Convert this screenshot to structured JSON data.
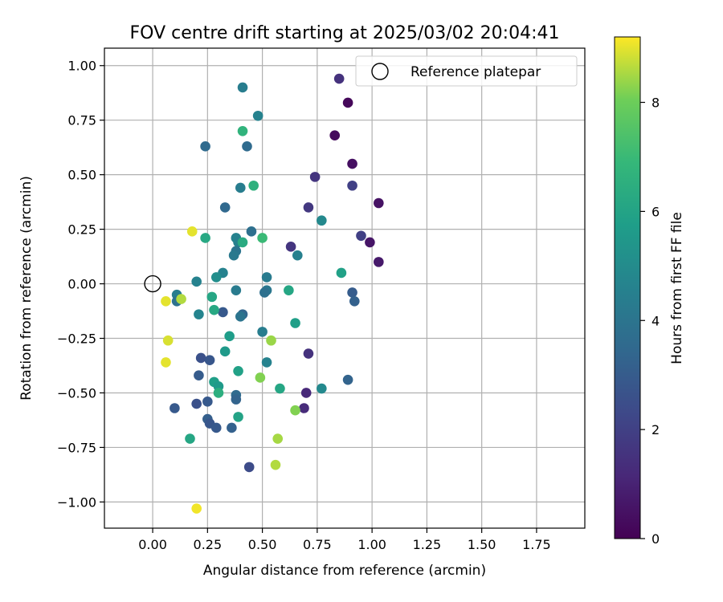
{
  "chart_data": {
    "type": "scatter",
    "title": "FOV centre drift starting at 2025/03/02 20:04:41",
    "xlabel": "Angular distance from reference (arcmin)",
    "ylabel": "Rotation from reference (arcmin)",
    "xlim": [
      -0.22,
      1.97
    ],
    "ylim": [
      -1.12,
      1.08
    ],
    "x_ticks": [
      0.0,
      0.25,
      0.5,
      0.75,
      1.0,
      1.25,
      1.5,
      1.75
    ],
    "x_tick_labels": [
      "0.00",
      "0.25",
      "0.50",
      "0.75",
      "1.00",
      "1.25",
      "1.50",
      "1.75"
    ],
    "y_ticks": [
      1.0,
      0.75,
      0.5,
      0.25,
      0.0,
      -0.25,
      -0.5,
      -0.75,
      -1.0
    ],
    "y_tick_labels": [
      "1.00",
      "0.75",
      "0.50",
      "0.25",
      "0.00",
      "−0.25",
      "−0.50",
      "−0.75",
      "−1.00"
    ],
    "grid": true,
    "legend": {
      "placement": "top-right",
      "entries": [
        "Reference platepar"
      ]
    },
    "reference_point": {
      "x": 0.0,
      "y": 0.0,
      "label": "Reference platepar"
    },
    "colorbar": {
      "label": "Hours from first FF file",
      "colormap": "viridis",
      "range": [
        0,
        9.2
      ],
      "ticks": [
        0,
        2,
        4,
        6,
        8
      ],
      "tick_labels": [
        "0",
        "2",
        "4",
        "6",
        "8"
      ]
    },
    "points": [
      {
        "x": 0.89,
        "y": 0.83,
        "c": 0.2
      },
      {
        "x": 0.83,
        "y": 0.68,
        "c": 0.3
      },
      {
        "x": 0.91,
        "y": 0.55,
        "c": 0.4
      },
      {
        "x": 1.03,
        "y": 0.37,
        "c": 0.5
      },
      {
        "x": 0.99,
        "y": 0.19,
        "c": 0.6
      },
      {
        "x": 1.03,
        "y": 0.1,
        "c": 0.7
      },
      {
        "x": 0.85,
        "y": 0.94,
        "c": 1.5
      },
      {
        "x": 0.74,
        "y": 0.49,
        "c": 1.6
      },
      {
        "x": 0.91,
        "y": 0.45,
        "c": 2.0
      },
      {
        "x": 0.71,
        "y": 0.35,
        "c": 1.7
      },
      {
        "x": 0.95,
        "y": 0.22,
        "c": 2.0
      },
      {
        "x": 0.63,
        "y": 0.17,
        "c": 1.6
      },
      {
        "x": 0.71,
        "y": -0.32,
        "c": 1.5
      },
      {
        "x": 0.7,
        "y": -0.5,
        "c": 1.2
      },
      {
        "x": 0.69,
        "y": -0.57,
        "c": 1.3
      },
      {
        "x": 0.44,
        "y": -0.84,
        "c": 2.4
      },
      {
        "x": 0.91,
        "y": -0.04,
        "c": 3.0
      },
      {
        "x": 0.92,
        "y": -0.08,
        "c": 3.2
      },
      {
        "x": 0.89,
        "y": -0.44,
        "c": 3.3
      },
      {
        "x": 0.41,
        "y": 0.9,
        "c": 4.4
      },
      {
        "x": 0.48,
        "y": 0.77,
        "c": 4.6
      },
      {
        "x": 0.24,
        "y": 0.63,
        "c": 3.6
      },
      {
        "x": 0.43,
        "y": 0.63,
        "c": 3.6
      },
      {
        "x": 0.4,
        "y": 0.44,
        "c": 4.4
      },
      {
        "x": 0.33,
        "y": 0.35,
        "c": 3.5
      },
      {
        "x": 0.77,
        "y": 0.29,
        "c": 4.9
      },
      {
        "x": 0.45,
        "y": 0.24,
        "c": 3.8
      },
      {
        "x": 0.38,
        "y": 0.21,
        "c": 4.6
      },
      {
        "x": 0.39,
        "y": 0.19,
        "c": 4.5
      },
      {
        "x": 0.38,
        "y": 0.15,
        "c": 4.0
      },
      {
        "x": 0.37,
        "y": 0.13,
        "c": 4.2
      },
      {
        "x": 0.66,
        "y": 0.13,
        "c": 4.5
      },
      {
        "x": 0.32,
        "y": 0.05,
        "c": 4.6
      },
      {
        "x": 0.52,
        "y": 0.03,
        "c": 4.3
      },
      {
        "x": 0.29,
        "y": 0.03,
        "c": 5.1
      },
      {
        "x": 0.2,
        "y": 0.01,
        "c": 4.6
      },
      {
        "x": 0.38,
        "y": -0.03,
        "c": 4.3
      },
      {
        "x": 0.52,
        "y": -0.03,
        "c": 4.1
      },
      {
        "x": 0.51,
        "y": -0.04,
        "c": 3.8
      },
      {
        "x": 0.11,
        "y": -0.05,
        "c": 4.4
      },
      {
        "x": 0.11,
        "y": -0.08,
        "c": 3.9
      },
      {
        "x": 0.32,
        "y": -0.13,
        "c": 2.9
      },
      {
        "x": 0.41,
        "y": -0.14,
        "c": 3.4
      },
      {
        "x": 0.4,
        "y": -0.15,
        "c": 4.0
      },
      {
        "x": 0.21,
        "y": -0.14,
        "c": 4.7
      },
      {
        "x": 0.5,
        "y": -0.22,
        "c": 4.4
      },
      {
        "x": 0.22,
        "y": -0.34,
        "c": 2.6
      },
      {
        "x": 0.26,
        "y": -0.35,
        "c": 2.8
      },
      {
        "x": 0.52,
        "y": -0.36,
        "c": 4.6
      },
      {
        "x": 0.21,
        "y": -0.42,
        "c": 3.0
      },
      {
        "x": 0.38,
        "y": -0.51,
        "c": 3.6
      },
      {
        "x": 0.38,
        "y": -0.53,
        "c": 3.3
      },
      {
        "x": 0.25,
        "y": -0.54,
        "c": 2.9
      },
      {
        "x": 0.2,
        "y": -0.55,
        "c": 2.6
      },
      {
        "x": 0.1,
        "y": -0.57,
        "c": 2.9
      },
      {
        "x": 0.25,
        "y": -0.62,
        "c": 3.1
      },
      {
        "x": 0.26,
        "y": -0.64,
        "c": 2.8
      },
      {
        "x": 0.29,
        "y": -0.66,
        "c": 2.9
      },
      {
        "x": 0.36,
        "y": -0.66,
        "c": 3.2
      },
      {
        "x": 0.77,
        "y": -0.48,
        "c": 4.9
      },
      {
        "x": 0.41,
        "y": 0.7,
        "c": 6.7
      },
      {
        "x": 0.46,
        "y": 0.45,
        "c": 6.6
      },
      {
        "x": 0.24,
        "y": 0.21,
        "c": 6.2
      },
      {
        "x": 0.41,
        "y": 0.19,
        "c": 6.3
      },
      {
        "x": 0.5,
        "y": 0.21,
        "c": 7.0
      },
      {
        "x": 0.86,
        "y": 0.05,
        "c": 5.9
      },
      {
        "x": 0.62,
        "y": -0.03,
        "c": 6.1
      },
      {
        "x": 0.27,
        "y": -0.06,
        "c": 6.1
      },
      {
        "x": 0.28,
        "y": -0.12,
        "c": 6.2
      },
      {
        "x": 0.35,
        "y": -0.24,
        "c": 5.7
      },
      {
        "x": 0.65,
        "y": -0.18,
        "c": 5.8
      },
      {
        "x": 0.33,
        "y": -0.31,
        "c": 5.6
      },
      {
        "x": 0.39,
        "y": -0.4,
        "c": 5.9
      },
      {
        "x": 0.28,
        "y": -0.45,
        "c": 5.8
      },
      {
        "x": 0.3,
        "y": -0.47,
        "c": 5.6
      },
      {
        "x": 0.3,
        "y": -0.5,
        "c": 6.5
      },
      {
        "x": 0.58,
        "y": -0.48,
        "c": 6.1
      },
      {
        "x": 0.39,
        "y": -0.61,
        "c": 6.0
      },
      {
        "x": 0.17,
        "y": -0.71,
        "c": 6.1
      },
      {
        "x": 0.18,
        "y": 0.24,
        "c": 9.0
      },
      {
        "x": 0.06,
        "y": -0.08,
        "c": 9.0
      },
      {
        "x": 0.13,
        "y": -0.07,
        "c": 8.6
      },
      {
        "x": 0.07,
        "y": -0.26,
        "c": 8.9
      },
      {
        "x": 0.06,
        "y": -0.36,
        "c": 9.0
      },
      {
        "x": 0.54,
        "y": -0.26,
        "c": 8.4
      },
      {
        "x": 0.49,
        "y": -0.43,
        "c": 8.2
      },
      {
        "x": 0.65,
        "y": -0.58,
        "c": 8.2
      },
      {
        "x": 0.57,
        "y": -0.71,
        "c": 8.5
      },
      {
        "x": 0.56,
        "y": -0.83,
        "c": 8.6
      },
      {
        "x": 0.2,
        "y": -1.03,
        "c": 9.1
      }
    ]
  }
}
